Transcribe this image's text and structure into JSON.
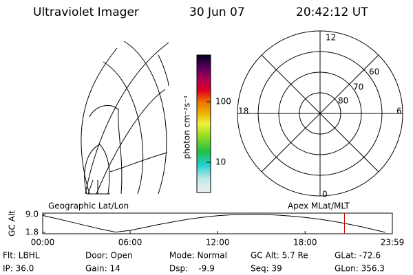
{
  "header": {
    "title": "Ultraviolet Imager",
    "date": "30 Jun 07",
    "time": "20:42:12 UT"
  },
  "colorbar": {
    "label": "photon cm⁻²s⁻¹",
    "ticks": [
      "100",
      "10"
    ]
  },
  "polar": {
    "mlt_labels": [
      "12",
      "6",
      "0",
      "18"
    ],
    "lat_labels": [
      "60",
      "70",
      "80"
    ]
  },
  "strip": {
    "left_label": "Geographic Lat/Lon",
    "right_label": "Apex MLat/MLT",
    "y_label": "GC Alt",
    "ylim": [
      1.8,
      9.0
    ],
    "yticks": [
      {
        "value": 9.0,
        "label": "9.0"
      },
      {
        "value": 1.8,
        "label": "1.8"
      }
    ],
    "xlim": [
      0,
      23.983
    ],
    "xticks": [
      {
        "value": 0,
        "label": "00:00"
      },
      {
        "value": 6,
        "label": "06:00"
      },
      {
        "value": 12,
        "label": "12:00"
      },
      {
        "value": 18,
        "label": "18:00"
      },
      {
        "value": 23.983,
        "label": "23:59"
      }
    ],
    "hours": [
      0,
      1,
      2,
      3,
      4,
      5,
      6,
      7,
      8,
      9,
      10,
      11,
      12,
      13,
      14,
      15,
      16,
      17,
      18,
      19,
      20,
      21,
      22,
      23,
      23.5
    ],
    "altitude": [
      8.6,
      7.3,
      5.9,
      4.5,
      3.1,
      1.9,
      2.6,
      3.8,
      5.0,
      6.1,
      7.1,
      7.9,
      8.5,
      8.9,
      9.0,
      9.0,
      8.8,
      8.4,
      7.8,
      7.1,
      6.2,
      5.1,
      3.9,
      2.5,
      1.8
    ],
    "current_hour": 20.7
  },
  "footer": {
    "rows": [
      [
        "Flt: LBHL",
        "Door: Open",
        "Mode: Normal",
        "GC Alt: 5.7 Re",
        "GLat: -72.6"
      ],
      [
        "IP: 36.0",
        "Gain: 14",
        "Dsp:    -9.9",
        "Seq: 39",
        "GLon: 356.3"
      ]
    ]
  }
}
